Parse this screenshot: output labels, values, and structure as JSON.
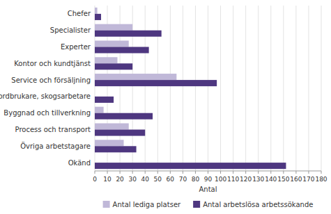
{
  "chart_data": {
    "type": "bar",
    "orientation": "horizontal",
    "categories": [
      "Chefer",
      "Specialister",
      "Experter",
      "Kontor och kundtjänst",
      "Service och försäljning",
      "Jordbrukare, skogsarbetare",
      "Byggnad och tillverkning",
      "Process och transport",
      "Övriga arbetstagare",
      "Okänd"
    ],
    "series": [
      {
        "name": "Antal lediga platser",
        "color": "#c0b8d8",
        "values": [
          2,
          30,
          27,
          18,
          65,
          0,
          7,
          27,
          23,
          0
        ]
      },
      {
        "name": "Antal arbetslösa arbetssökande",
        "color": "#4e3780",
        "values": [
          5,
          53,
          43,
          30,
          97,
          15,
          46,
          40,
          33,
          152
        ]
      }
    ],
    "xlabel": "Antal",
    "xlim": [
      0,
      180
    ],
    "xticks": [
      0,
      10,
      20,
      30,
      40,
      50,
      60,
      70,
      80,
      90,
      100,
      110,
      120,
      130,
      140,
      150,
      160,
      170,
      180
    ],
    "grid": true,
    "legend": "bottom"
  }
}
